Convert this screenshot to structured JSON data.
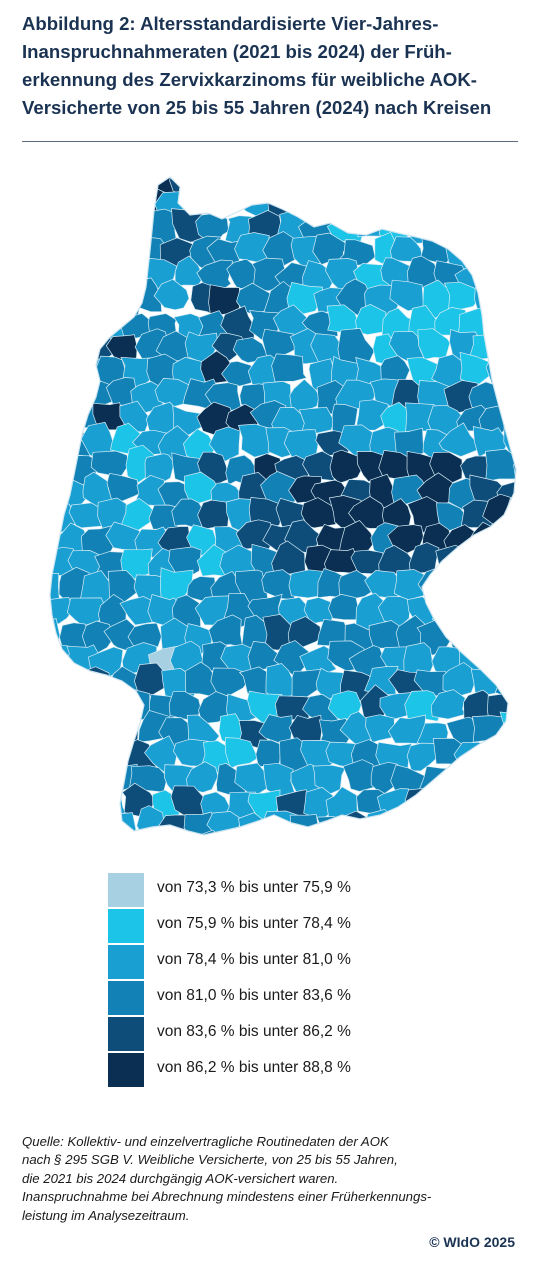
{
  "title_lines": [
    "Abbildung 2: Altersstandardisierte Vier-Jahres-",
    "Inanspruchnahmeraten (2021 bis 2024) der Früh-",
    "erkennung des Zervixkarzinoms für weibliche AOK-",
    "Versicherte von 25 bis 55 Jahren (2024) nach Kreisen"
  ],
  "legend": [
    {
      "label": "von 73,3 % bis unter 75,9 %",
      "color": "#a8d0e3"
    },
    {
      "label": "von 75,9 % bis unter 78,4 %",
      "color": "#1cc4e8"
    },
    {
      "label": "von 78,4 % bis unter 81,0 %",
      "color": "#1a9fd3"
    },
    {
      "label": "von 81,0 % bis unter 83,6 %",
      "color": "#1282b6"
    },
    {
      "label": "von 83,6 % bis unter 86,2 %",
      "color": "#0e4d7a"
    },
    {
      "label": "von 86,2 % bis unter 88,8 %",
      "color": "#0a2f52"
    }
  ],
  "source_lines": [
    "Quelle: Kollektiv- und einzelvertragliche Routinedaten der AOK",
    "nach § 295 SGB V. Weibliche Versicherte, von 25 bis 55 Jahren,",
    "die 2021 bis 2024 durchgängig AOK-versichert waren.",
    "Inanspruchnahme bei Abrechnung mindestens einer Früherkennungs-",
    "leistung im Analysezeitraum."
  ],
  "copyright": "© WIdO 2025",
  "map": {
    "region_border_color": "#d6ecf5",
    "regions": [
      {
        "class": 3,
        "area": "north-west"
      },
      {
        "class": 2,
        "area": "north-east"
      },
      {
        "class": 1,
        "area": "mecklenburg-east"
      },
      {
        "class": 3,
        "area": "west"
      },
      {
        "class": 4,
        "area": "lower-saxony-center"
      },
      {
        "class": 5,
        "area": "saxony-thuringia"
      },
      {
        "class": 2,
        "area": "hesse-south"
      },
      {
        "class": 0,
        "area": "rhein-main"
      },
      {
        "class": 4,
        "area": "baden-west"
      },
      {
        "class": 2,
        "area": "bavaria"
      },
      {
        "class": 1,
        "area": "bavaria-south"
      }
    ]
  }
}
